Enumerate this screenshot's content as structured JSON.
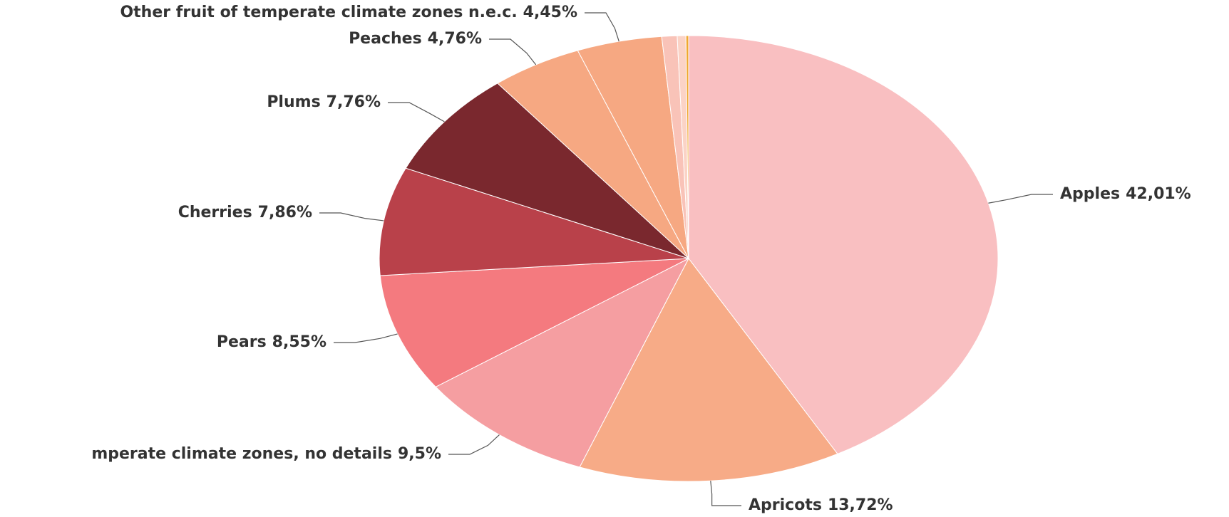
{
  "chart_data": {
    "type": "pie",
    "categories": [
      "Apples",
      "Apricots",
      "mperate climate zones, no details",
      "Pears",
      "Cherries",
      "Plums",
      "Peaches",
      "Other fruit of temperate climate zones n.e.c.",
      null,
      null,
      null
    ],
    "values": [
      42.01,
      13.72,
      9.5,
      8.55,
      7.86,
      7.76,
      4.76,
      4.45,
      0.8,
      0.45,
      0.14
    ],
    "value_labels": [
      "42,01%",
      "13,72%",
      "9,5%",
      "8,55%",
      "7,86%",
      "7,76%",
      "4,76%",
      "4,45%",
      null,
      null,
      null
    ],
    "colors": [
      "#f9bfc1",
      "#f7ab87",
      "#f59ea1",
      "#f47a7f",
      "#b9414a",
      "#7a282e",
      "#f6a882",
      "#f6a882",
      "#f9c3b8",
      "#fbd3c6",
      "#f0a830"
    ]
  }
}
